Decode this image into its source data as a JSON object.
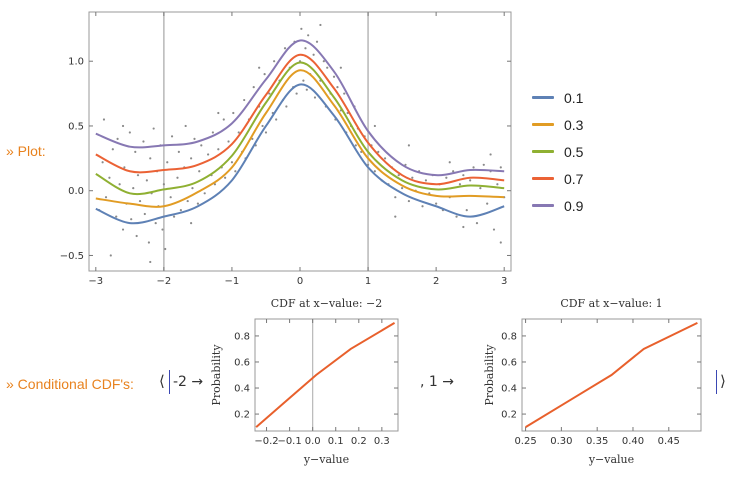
{
  "labels": {
    "plot": "» Plot:",
    "conditional": "» Conditional CDF's:",
    "open_bracket": "⟨",
    "close_bracket": "⟩",
    "arrow_a": "-2 →",
    "separator_b": ", 1 →"
  },
  "colors": {
    "blue": "#5e81b5",
    "orange": "#e19c24",
    "green": "#8fb032",
    "red": "#eb6235",
    "purple": "#8778b3",
    "cdf_line": "#e8602c",
    "points": "#8a8a8a",
    "accent_label": "#e8821e"
  },
  "chart_data": [
    {
      "type": "line",
      "title": "",
      "xlabel": "",
      "ylabel": "",
      "xlim": [
        -3.1,
        3.1
      ],
      "ylim": [
        -0.62,
        1.38
      ],
      "xticks": [
        -3,
        -2,
        -1,
        0,
        1,
        2,
        3
      ],
      "yticks": [
        -0.5,
        0.0,
        0.5,
        1.0
      ],
      "ytick_labels": [
        "−0.5",
        "0.0",
        "0.5",
        "1.0"
      ],
      "xtick_labels": [
        "−3",
        "−2",
        "−1",
        "0",
        "1",
        "2",
        "3"
      ],
      "vertical_lines": [
        -2,
        1
      ],
      "grid": false,
      "legend": "right",
      "x": [
        -3.0,
        -2.5,
        -2.0,
        -1.5,
        -1.0,
        -0.5,
        0.0,
        0.5,
        1.0,
        1.5,
        2.0,
        2.5,
        3.0
      ],
      "series": [
        {
          "name": "0.1",
          "color": "#5e81b5",
          "values": [
            -0.14,
            -0.25,
            -0.2,
            -0.12,
            0.08,
            0.5,
            0.82,
            0.58,
            0.18,
            -0.02,
            -0.12,
            -0.2,
            -0.12
          ]
        },
        {
          "name": "0.3",
          "color": "#e19c24",
          "values": [
            -0.06,
            -0.1,
            -0.12,
            -0.01,
            0.18,
            0.6,
            0.93,
            0.66,
            0.25,
            0.04,
            -0.04,
            -0.04,
            -0.05
          ]
        },
        {
          "name": "0.5",
          "color": "#8fb032",
          "values": [
            0.13,
            -0.02,
            0.01,
            0.07,
            0.27,
            0.68,
            0.99,
            0.72,
            0.3,
            0.08,
            0.01,
            0.04,
            0.02
          ]
        },
        {
          "name": "0.7",
          "color": "#eb6235",
          "values": [
            0.28,
            0.15,
            0.16,
            0.2,
            0.36,
            0.74,
            1.05,
            0.79,
            0.37,
            0.12,
            0.05,
            0.1,
            0.08
          ]
        },
        {
          "name": "0.9",
          "color": "#8778b3",
          "values": [
            0.44,
            0.34,
            0.35,
            0.38,
            0.52,
            0.86,
            1.16,
            0.92,
            0.46,
            0.2,
            0.12,
            0.16,
            0.15
          ]
        }
      ],
      "scatter_points": [
        [
          -2.95,
          -0.15
        ],
        [
          -2.9,
          0.22
        ],
        [
          -2.88,
          0.55
        ],
        [
          -2.85,
          -0.05
        ],
        [
          -2.8,
          0.1
        ],
        [
          -2.78,
          -0.5
        ],
        [
          -2.75,
          0.32
        ],
        [
          -2.7,
          -0.2
        ],
        [
          -2.68,
          0.4
        ],
        [
          -2.65,
          0.05
        ],
        [
          -2.6,
          -0.3
        ],
        [
          -2.58,
          0.18
        ],
        [
          -2.55,
          -0.1
        ],
        [
          -2.5,
          0.45
        ],
        [
          -2.48,
          -0.22
        ],
        [
          -2.45,
          0.02
        ],
        [
          -2.42,
          0.3
        ],
        [
          -2.4,
          -0.35
        ],
        [
          -2.38,
          0.12
        ],
        [
          -2.35,
          -0.08
        ],
        [
          -2.3,
          0.38
        ],
        [
          -2.28,
          -0.18
        ],
        [
          -2.25,
          0.08
        ],
        [
          -2.22,
          -0.4
        ],
        [
          -2.2,
          0.25
        ],
        [
          -2.18,
          -0.02
        ],
        [
          -2.15,
          0.48
        ],
        [
          -2.12,
          -0.25
        ],
        [
          -2.1,
          0.15
        ],
        [
          -2.08,
          -0.12
        ],
        [
          -2.05,
          0.35
        ],
        [
          -2.02,
          -0.3
        ],
        [
          -2.0,
          0.05
        ],
        [
          -1.98,
          -0.45
        ],
        [
          -1.95,
          0.22
        ],
        [
          -1.9,
          -0.05
        ],
        [
          -1.88,
          0.42
        ],
        [
          -1.85,
          -0.2
        ],
        [
          -1.8,
          0.1
        ],
        [
          -1.78,
          0.3
        ],
        [
          -1.75,
          -0.15
        ],
        [
          -1.7,
          0.18
        ],
        [
          -1.68,
          0.5
        ],
        [
          -1.65,
          -0.08
        ],
        [
          -1.6,
          0.25
        ],
        [
          -1.58,
          0.02
        ],
        [
          -1.55,
          0.4
        ],
        [
          -1.5,
          -0.1
        ],
        [
          -1.48,
          0.15
        ],
        [
          -1.45,
          0.35
        ],
        [
          -1.4,
          -0.02
        ],
        [
          -1.35,
          0.28
        ],
        [
          -1.3,
          0.12
        ],
        [
          -1.28,
          0.45
        ],
        [
          -1.25,
          0.05
        ],
        [
          -1.2,
          0.32
        ],
        [
          -1.15,
          0.18
        ],
        [
          -1.12,
          0.55
        ],
        [
          -1.1,
          0.1
        ],
        [
          -1.05,
          0.38
        ],
        [
          -1.0,
          0.22
        ],
        [
          -0.98,
          0.6
        ],
        [
          -0.95,
          0.15
        ],
        [
          -0.9,
          0.45
        ],
        [
          -0.85,
          0.3
        ],
        [
          -0.82,
          0.7
        ],
        [
          -0.8,
          0.25
        ],
        [
          -0.75,
          0.55
        ],
        [
          -0.7,
          0.4
        ],
        [
          -0.68,
          0.8
        ],
        [
          -0.65,
          0.35
        ],
        [
          -0.6,
          0.65
        ],
        [
          -0.55,
          0.5
        ],
        [
          -0.52,
          0.9
        ],
        [
          -0.5,
          0.45
        ],
        [
          -0.45,
          0.75
        ],
        [
          -0.4,
          0.6
        ],
        [
          -0.38,
          1.0
        ],
        [
          -0.35,
          0.55
        ],
        [
          -0.3,
          0.85
        ],
        [
          -0.25,
          0.7
        ],
        [
          -0.22,
          1.1
        ],
        [
          -0.2,
          0.65
        ],
        [
          -0.15,
          0.95
        ],
        [
          -0.1,
          0.8
        ],
        [
          -0.08,
          1.15
        ],
        [
          -0.05,
          0.75
        ],
        [
          0.0,
          1.0
        ],
        [
          0.02,
          1.25
        ],
        [
          0.05,
          0.85
        ],
        [
          0.08,
          1.1
        ],
        [
          0.1,
          0.78
        ],
        [
          0.12,
          1.2
        ],
        [
          0.15,
          0.9
        ],
        [
          0.2,
          1.05
        ],
        [
          0.22,
          0.72
        ],
        [
          0.25,
          1.15
        ],
        [
          0.3,
          0.85
        ],
        [
          0.35,
          1.0
        ],
        [
          0.38,
          0.65
        ],
        [
          0.4,
          0.95
        ],
        [
          0.45,
          0.75
        ],
        [
          0.5,
          0.88
        ],
        [
          0.52,
          0.55
        ],
        [
          0.55,
          0.8
        ],
        [
          0.6,
          0.62
        ],
        [
          0.65,
          0.75
        ],
        [
          0.68,
          0.45
        ],
        [
          0.7,
          0.6
        ],
        [
          0.75,
          0.5
        ],
        [
          0.8,
          0.65
        ],
        [
          0.82,
          0.35
        ],
        [
          0.85,
          0.48
        ],
        [
          0.9,
          0.3
        ],
        [
          0.95,
          0.42
        ],
        [
          1.0,
          0.2
        ],
        [
          1.05,
          0.35
        ],
        [
          1.1,
          0.15
        ],
        [
          1.15,
          0.3
        ],
        [
          1.2,
          0.08
        ],
        [
          1.25,
          0.25
        ],
        [
          1.3,
          0.05
        ],
        [
          1.35,
          0.18
        ],
        [
          1.4,
          -0.05
        ],
        [
          1.45,
          0.12
        ],
        [
          1.5,
          0.02
        ],
        [
          1.55,
          0.2
        ],
        [
          1.6,
          -0.08
        ],
        [
          1.65,
          0.1
        ],
        [
          1.7,
          0.0
        ],
        [
          1.75,
          0.15
        ],
        [
          1.8,
          -0.12
        ],
        [
          1.85,
          0.08
        ],
        [
          1.9,
          -0.02
        ],
        [
          1.95,
          0.12
        ],
        [
          2.0,
          -0.1
        ],
        [
          2.05,
          0.05
        ],
        [
          2.1,
          -0.15
        ],
        [
          2.15,
          0.1
        ],
        [
          2.2,
          -0.05
        ],
        [
          2.25,
          0.15
        ],
        [
          2.3,
          -0.2
        ],
        [
          2.35,
          0.05
        ],
        [
          2.4,
          0.12
        ],
        [
          2.45,
          -0.15
        ],
        [
          2.5,
          0.08
        ],
        [
          2.55,
          0.18
        ],
        [
          2.6,
          -0.25
        ],
        [
          2.65,
          0.02
        ],
        [
          2.7,
          0.2
        ],
        [
          2.75,
          -0.1
        ],
        [
          2.8,
          0.15
        ],
        [
          2.85,
          -0.3
        ],
        [
          2.9,
          0.05
        ],
        [
          2.95,
          0.18
        ],
        [
          3.0,
          -0.05
        ],
        [
          -2.6,
          0.5
        ],
        [
          -1.2,
          0.6
        ],
        [
          -0.6,
          0.95
        ],
        [
          0.3,
          1.28
        ],
        [
          0.6,
          0.95
        ],
        [
          1.1,
          0.5
        ],
        [
          1.6,
          0.35
        ],
        [
          2.2,
          0.22
        ],
        [
          2.8,
          0.28
        ],
        [
          -2.2,
          -0.55
        ],
        [
          -1.6,
          -0.25
        ],
        [
          1.4,
          -0.2
        ],
        [
          2.4,
          -0.28
        ],
        [
          2.95,
          -0.4
        ]
      ]
    },
    {
      "type": "line",
      "title": "CDF at x−value: −2",
      "xlabel": "y−value",
      "ylabel": "Probability",
      "xlim": [
        -0.25,
        0.37
      ],
      "ylim": [
        0.07,
        0.93
      ],
      "xticks": [
        -0.2,
        -0.1,
        0.0,
        0.1,
        0.2,
        0.3
      ],
      "xtick_labels": [
        "−0.2",
        "−0.1",
        "0.0",
        "0.1",
        "0.2",
        "0.3"
      ],
      "yticks": [
        0.2,
        0.4,
        0.6,
        0.8
      ],
      "ytick_labels": [
        "0.2",
        "0.4",
        "0.6",
        "0.8"
      ],
      "vertical_lines": [
        0.0
      ],
      "x": [
        -0.245,
        -0.115,
        0.015,
        0.165,
        0.355
      ],
      "values": [
        0.1,
        0.3,
        0.5,
        0.7,
        0.9
      ]
    },
    {
      "type": "line",
      "title": "CDF at x−value: 1",
      "xlabel": "y−value",
      "ylabel": "Probability",
      "xlim": [
        0.245,
        0.495
      ],
      "ylim": [
        0.07,
        0.93
      ],
      "xticks": [
        0.25,
        0.3,
        0.35,
        0.4,
        0.45
      ],
      "xtick_labels": [
        "0.25",
        "0.30",
        "0.35",
        "0.40",
        "0.45"
      ],
      "yticks": [
        0.2,
        0.4,
        0.6,
        0.8
      ],
      "ytick_labels": [
        "0.2",
        "0.4",
        "0.6",
        "0.8"
      ],
      "vertical_lines": [],
      "x": [
        0.25,
        0.31,
        0.37,
        0.415,
        0.49
      ],
      "values": [
        0.1,
        0.3,
        0.5,
        0.7,
        0.9
      ]
    }
  ]
}
